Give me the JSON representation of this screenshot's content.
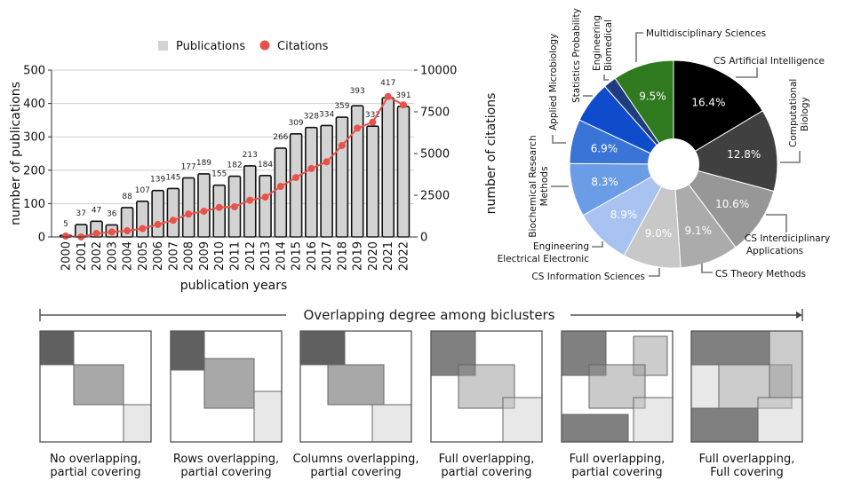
{
  "chart_data": [
    {
      "type": "bar",
      "legend": {
        "position": "top",
        "entries": [
          "Publications",
          "Citations"
        ]
      },
      "xlabel": "publication years",
      "ylabel": "number of publications",
      "ylabel_right": "number of citations",
      "ylim": [
        0,
        500
      ],
      "ylim_right": [
        0,
        10000
      ],
      "yticks": [
        0,
        100,
        200,
        300,
        400,
        500
      ],
      "yticks_right": [
        0,
        2500,
        5000,
        7500,
        10000
      ],
      "grid": true,
      "categories": [
        "2000",
        "2001",
        "2002",
        "2003",
        "2004",
        "2005",
        "2006",
        "2007",
        "2008",
        "2009",
        "2010",
        "2011",
        "2012",
        "2013",
        "2014",
        "2015",
        "2016",
        "2017",
        "2018",
        "2019",
        "2020",
        "2021",
        "2022"
      ],
      "series": [
        {
          "name": "Publications",
          "type": "bar",
          "axis": "left",
          "color": "#d3d3d3",
          "values": [
            5,
            37,
            47,
            36,
            88,
            107,
            139,
            145,
            177,
            189,
            155,
            182,
            213,
            184,
            266,
            309,
            328,
            334,
            359,
            393,
            332,
            417,
            391
          ]
        },
        {
          "name": "Citations",
          "type": "line",
          "axis": "right",
          "color": "#e8524a",
          "values": [
            50,
            0,
            210,
            300,
            370,
            500,
            750,
            1000,
            1370,
            1540,
            1770,
            1810,
            2200,
            2390,
            3030,
            3560,
            4100,
            4500,
            5480,
            6520,
            6880,
            8420,
            7910
          ]
        }
      ]
    },
    {
      "type": "pie",
      "donut": true,
      "slices": [
        {
          "label": "CS Artificial Intelligence",
          "value": 16.4,
          "pct_label": "16.4%",
          "color": "#000000"
        },
        {
          "label": "Computational Biology",
          "value": 12.8,
          "pct_label": "12.8%",
          "color": "#404040"
        },
        {
          "label": "CS Interdiciplinary Applications",
          "value": 10.6,
          "pct_label": "10.6%",
          "color": "#979797"
        },
        {
          "label": "CS Theory Methods",
          "value": 9.1,
          "pct_label": "9.1%",
          "color": "#ababab"
        },
        {
          "label": "CS Information Sciences",
          "value": 9.0,
          "pct_label": "9.0%",
          "color": "#c8c8c8"
        },
        {
          "label": "Engineering Electrical Electronic",
          "value": 8.9,
          "pct_label": "8.9%",
          "color": "#a8c3f0"
        },
        {
          "label": "Biochemical Research Methods",
          "value": 8.3,
          "pct_label": "8.3%",
          "color": "#6b9ce6"
        },
        {
          "label": "Applied Microbiology",
          "value": 6.9,
          "pct_label": "6.9%",
          "color": "#3a74d6"
        },
        {
          "label": "Statistics Probability",
          "value": 6.5,
          "pct_label": "",
          "color": "#0f4ccc"
        },
        {
          "label": "Engineering Biomedical",
          "value": 2.0,
          "pct_label": "",
          "color": "#1f3c7e"
        },
        {
          "label": "Multidisciplinary Sciences",
          "value": 9.5,
          "pct_label": "9.5%",
          "color": "#2f7a1f"
        }
      ],
      "label_lines": {
        "cs_ai": "CS Artificial Intelligence",
        "comp_bio_1": "Computational",
        "comp_bio_2": "Biology",
        "cs_inter_1": "CS Interdiciplinary",
        "cs_inter_2": "Applications",
        "cs_theory": "CS Theory Methods",
        "cs_info": "CS Information Sciences",
        "eng_elec_1": "Engineering",
        "eng_elec_2": "Electrical Electronic",
        "biochem_1": "Biochemical Research",
        "biochem_2": "Methods",
        "applied_micro": "Applied Microbiology",
        "stats_prob": "Statistics Probability",
        "eng_bio_1": "Engineering",
        "eng_bio_2": "Biomedical",
        "multidisc": "Multidisciplinary Sciences"
      }
    }
  ],
  "diagram": {
    "arrow_title": "Overlapping degree among biclusters",
    "panels": [
      {
        "line1": "No overlapping,",
        "line2": "partial covering"
      },
      {
        "line1": "Rows overlapping,",
        "line2": "partial covering"
      },
      {
        "line1": "Columns overlapping,",
        "line2": "partial covering"
      },
      {
        "line1": "Full overlapping,",
        "line2": "partial covering"
      },
      {
        "line1": "Full overlapping,",
        "line2": "partial covering"
      },
      {
        "line1": "Full overlapping,",
        "line2": "Full covering"
      }
    ]
  }
}
